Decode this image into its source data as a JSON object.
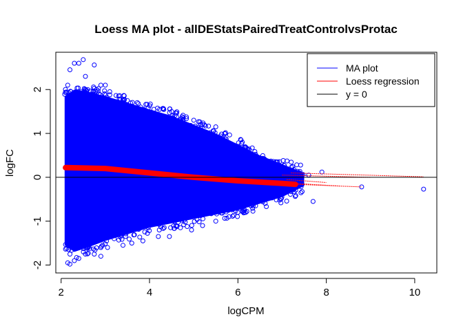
{
  "chart_data": {
    "type": "scatter",
    "title": "Loess MA plot - allDEStatsPairedTreatControlvsProtac",
    "xlabel": "logCPM",
    "ylabel": "logFC",
    "xlim": [
      1.88,
      10.5
    ],
    "ylim": [
      -2.18,
      2.85
    ],
    "xticks": [
      2,
      4,
      6,
      8,
      10
    ],
    "yticks": [
      -2,
      -1,
      0,
      1,
      2
    ],
    "xtick_labels": [
      "2",
      "4",
      "6",
      "8",
      "10"
    ],
    "ytick_labels": [
      "-2",
      "-1",
      "0",
      "1",
      "2"
    ],
    "grid": false,
    "legend_position": "top-right",
    "colors": {
      "points": "#0000ff",
      "loess": "#ff0000",
      "zero": "#000000"
    },
    "legend": [
      {
        "label": "MA plot",
        "color": "#0000ff"
      },
      {
        "label": "Loess regression",
        "color": "#ff0000"
      },
      {
        "label": "y = 0",
        "color": "#000000"
      }
    ],
    "series": [
      {
        "name": "MA plot",
        "kind": "points",
        "points": [
          [
            2.3,
            2.6
          ],
          [
            2.4,
            2.6
          ],
          [
            2.5,
            2.68
          ],
          [
            2.75,
            2.56
          ],
          [
            2.2,
            2.45
          ],
          [
            2.55,
            2.3
          ],
          [
            2.9,
            2.1
          ],
          [
            3.0,
            2.1
          ],
          [
            2.15,
            2.1
          ],
          [
            2.6,
            2.0
          ],
          [
            3.1,
            1.95
          ],
          [
            3.3,
            1.85
          ],
          [
            3.5,
            1.75
          ],
          [
            3.8,
            1.6
          ],
          [
            4.1,
            1.55
          ],
          [
            4.5,
            1.5
          ],
          [
            4.7,
            1.25
          ],
          [
            5.0,
            1.3
          ],
          [
            5.2,
            1.2
          ],
          [
            5.5,
            1.15
          ],
          [
            5.7,
            1.0
          ],
          [
            5.9,
            0.7
          ],
          [
            6.1,
            0.8
          ],
          [
            6.3,
            0.5
          ],
          [
            6.6,
            0.42
          ],
          [
            6.9,
            0.35
          ],
          [
            7.0,
            0.15
          ],
          [
            7.15,
            0.12
          ],
          [
            7.3,
            0.1
          ],
          [
            7.6,
            0.05
          ],
          [
            7.9,
            0.12
          ],
          [
            8.8,
            -0.22
          ],
          [
            10.2,
            -0.27
          ],
          [
            7.7,
            -0.55
          ],
          [
            7.0,
            -0.3
          ],
          [
            6.7,
            -0.45
          ],
          [
            6.4,
            -0.65
          ],
          [
            6.0,
            -0.8
          ],
          [
            5.8,
            -0.9
          ],
          [
            5.5,
            -1.0
          ],
          [
            5.2,
            -1.1
          ],
          [
            4.95,
            -1.2
          ],
          [
            4.7,
            -1.15
          ],
          [
            4.6,
            -1.1
          ],
          [
            4.45,
            -1.35
          ],
          [
            4.2,
            -1.35
          ],
          [
            3.85,
            -1.45
          ],
          [
            3.6,
            -1.5
          ],
          [
            3.4,
            -1.55
          ],
          [
            3.2,
            -1.3
          ],
          [
            3.05,
            -1.6
          ],
          [
            2.9,
            -1.6
          ],
          [
            2.75,
            -1.75
          ],
          [
            2.55,
            -1.75
          ],
          [
            2.4,
            -1.85
          ],
          [
            2.3,
            -1.9
          ],
          [
            2.2,
            -1.75
          ],
          [
            2.2,
            -1.98
          ],
          [
            2.5,
            -1.4
          ],
          [
            2.15,
            -1.25
          ],
          [
            2.9,
            -1.8
          ],
          [
            2.15,
            -1.95
          ],
          [
            3.2,
            -1.4
          ],
          [
            2.65,
            -1.62
          ]
        ]
      },
      {
        "name": "Loess regression",
        "kind": "line",
        "points": [
          [
            2.1,
            0.22
          ],
          [
            3.0,
            0.2
          ],
          [
            4.0,
            0.1
          ],
          [
            5.0,
            0.0
          ],
          [
            6.0,
            -0.08
          ],
          [
            7.0,
            -0.14
          ],
          [
            7.3,
            -0.16
          ]
        ],
        "tails": [
          [
            [
              7.3,
              -0.16
            ],
            [
              8.8,
              -0.22
            ]
          ],
          [
            [
              7.3,
              -0.14
            ],
            [
              8.3,
              -0.2
            ]
          ],
          [
            [
              7.2,
              0.1
            ],
            [
              10.2,
              0.01
            ]
          ],
          [
            [
              7.0,
              0.05
            ],
            [
              9.0,
              0.0
            ]
          ],
          [
            [
              7.1,
              -0.05
            ],
            [
              8.0,
              -0.12
            ]
          ]
        ]
      },
      {
        "name": "y = 0",
        "kind": "hline",
        "y": 0
      }
    ]
  }
}
